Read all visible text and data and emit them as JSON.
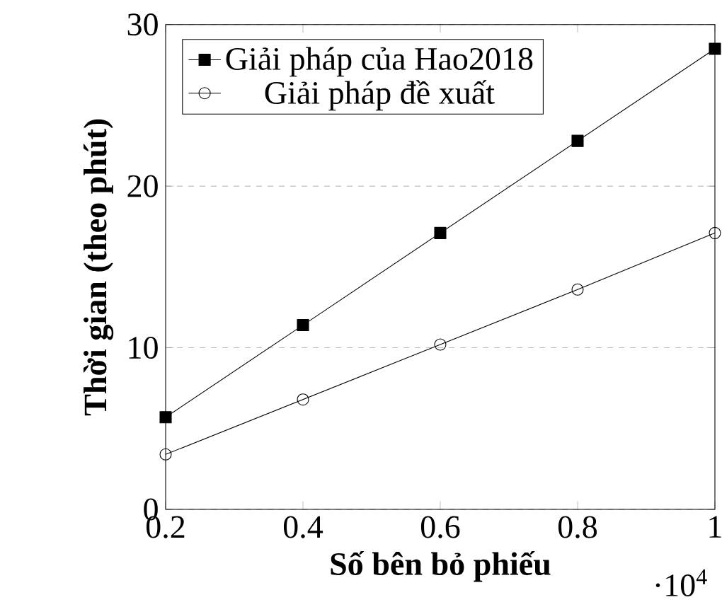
{
  "chart_data": {
    "type": "line",
    "xlabel": "Số bên bỏ phiếu",
    "ylabel": "Thời gian (theo phút)",
    "x": [
      0.2,
      0.4,
      0.6,
      0.8,
      1
    ],
    "series": [
      {
        "name": "Giải pháp của Hao2018",
        "color": "#000000",
        "marker": "square",
        "values": [
          5.7,
          11.4,
          17.1,
          22.8,
          28.5
        ]
      },
      {
        "name": "Giải pháp đề xuất",
        "color": "#000000",
        "marker": "circle",
        "values": [
          3.4,
          6.8,
          10.2,
          13.6,
          17.1
        ]
      }
    ],
    "xlim": [
      0.2,
      1
    ],
    "xticks": [
      0.2,
      0.4,
      0.6,
      0.8,
      1
    ],
    "ylim": [
      0,
      30
    ],
    "yticks": [
      0,
      10,
      20,
      30
    ],
    "annotations": [
      "·10$^{4}$"
    ],
    "grid": "y",
    "legend": "top left",
    "line_style": "solid"
  }
}
